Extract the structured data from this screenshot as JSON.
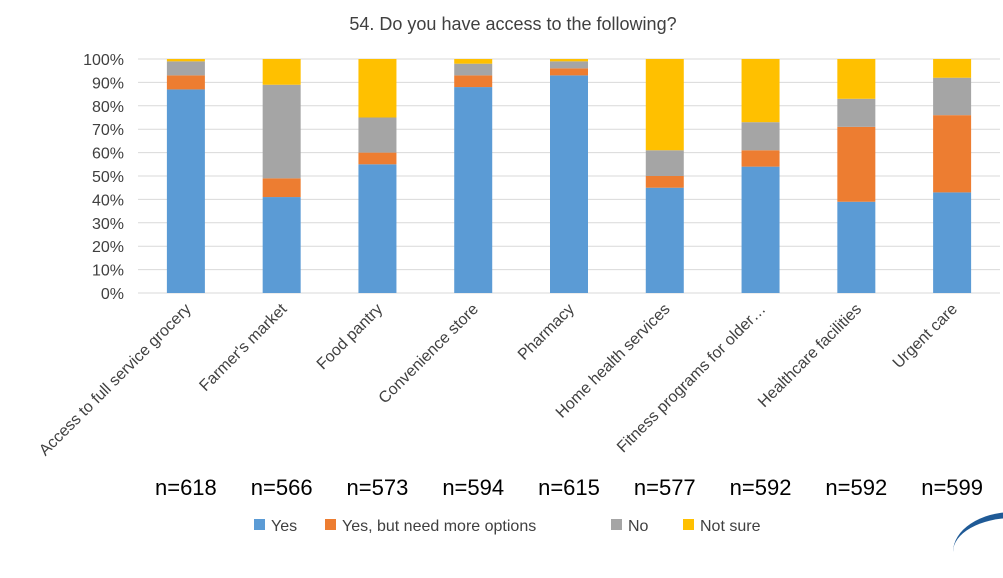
{
  "chart_data": {
    "type": "bar",
    "stacked": true,
    "normalized": true,
    "title": "54. Do you have access to the following?",
    "ylim": [
      0,
      100
    ],
    "yticks": [
      "0%",
      "10%",
      "20%",
      "30%",
      "40%",
      "50%",
      "60%",
      "70%",
      "80%",
      "90%",
      "100%"
    ],
    "categories": [
      "Access to full service grocery",
      "Farmer's market",
      "Food pantry",
      "Convenience store",
      "Pharmacy",
      "Home health services",
      "Fitness programs for older…",
      "Healthcare facilities",
      "Urgent care"
    ],
    "n_labels": [
      "n=618",
      "n=566",
      "n=573",
      "n=594",
      "n=615",
      "n=577",
      "n=592",
      "n=592",
      "n=599"
    ],
    "series": [
      {
        "name": "Yes",
        "color": "#5B9BD5",
        "values": [
          87,
          41,
          55,
          88,
          93,
          45,
          54,
          39,
          43
        ]
      },
      {
        "name": "Yes, but need more options",
        "color": "#ED7D31",
        "values": [
          6,
          8,
          5,
          5,
          3,
          5,
          7,
          32,
          33
        ]
      },
      {
        "name": "No",
        "color": "#A5A5A5",
        "values": [
          6,
          40,
          15,
          5,
          3,
          11,
          12,
          12,
          16
        ]
      },
      {
        "name": "Not sure",
        "color": "#FFC000",
        "values": [
          1,
          11,
          25,
          2,
          1,
          39,
          27,
          17,
          8
        ]
      }
    ],
    "grid": true,
    "legend": "bottom"
  }
}
